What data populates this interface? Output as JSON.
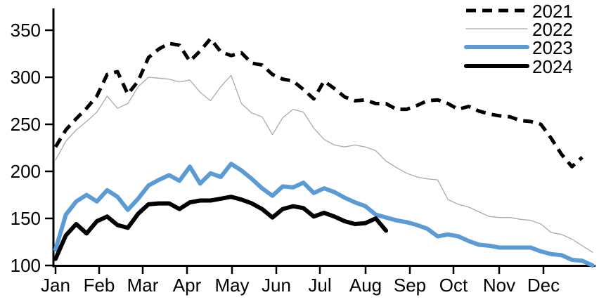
{
  "chart_data": {
    "type": "line",
    "title": "",
    "subtitle": "",
    "x_axis": {
      "unit": "weeks",
      "tick_labels": [
        "Jan",
        "Feb",
        "Mar",
        "Apr",
        "May",
        "Jun",
        "Jul",
        "Aug",
        "Sep",
        "Oct",
        "Nov",
        "Dec"
      ]
    },
    "y_axis": {
      "ticks": [
        100,
        150,
        200,
        250,
        300,
        350
      ],
      "min": 100,
      "max": 372,
      "grid": false
    },
    "legend": {
      "position": "top-right",
      "entries": [
        "2021",
        "2022",
        "2023",
        "2024"
      ]
    },
    "series": [
      {
        "name": "2021",
        "color": "#000000",
        "style": "dashed",
        "width": 5,
        "values": [
          226,
          244,
          256,
          267,
          280,
          303,
          306,
          282,
          296,
          321,
          330,
          336,
          334,
          317,
          328,
          341,
          327,
          323,
          326,
          315,
          313,
          303,
          298,
          296,
          287,
          277,
          296,
          288,
          279,
          275,
          276,
          272,
          272,
          266,
          266,
          270,
          275,
          276,
          272,
          266,
          269,
          264,
          261,
          259,
          258,
          254,
          253,
          250,
          235,
          218,
          205,
          215
        ]
      },
      {
        "name": "2022",
        "color": "#ABABAB",
        "style": "solid",
        "width": 1.3,
        "values": [
          212,
          232,
          244,
          253,
          263,
          280,
          267,
          272,
          290,
          300,
          299,
          298,
          295,
          297,
          284,
          275,
          290,
          302,
          272,
          262,
          258,
          239,
          257,
          266,
          263,
          246,
          234,
          228,
          226,
          228,
          226,
          222,
          211,
          204,
          198,
          194,
          192,
          191,
          170,
          165,
          162,
          157,
          152,
          151,
          151,
          149,
          148,
          144,
          135,
          133,
          128,
          121,
          114
        ]
      },
      {
        "name": "2023",
        "color": "#5B9BD5",
        "style": "solid",
        "width": 6,
        "values": [
          117,
          154,
          168,
          175,
          168,
          180,
          173,
          159,
          171,
          185,
          191,
          196,
          190,
          205,
          187,
          198,
          194,
          208,
          201,
          192,
          182,
          174,
          184,
          183,
          188,
          177,
          182,
          178,
          172,
          167,
          163,
          154,
          151,
          148,
          146,
          143,
          139,
          131,
          133,
          131,
          126,
          122,
          121,
          119,
          119,
          119,
          119,
          115,
          112,
          111,
          106,
          105,
          100
        ]
      },
      {
        "name": "2024",
        "color": "#000000",
        "style": "solid",
        "width": 6,
        "values": [
          107,
          132,
          144,
          134,
          147,
          152,
          143,
          140,
          155,
          165,
          166,
          166,
          160,
          167,
          169,
          169,
          171,
          173,
          170,
          166,
          160,
          151,
          160,
          163,
          161,
          152,
          156,
          152,
          147,
          144,
          145,
          150,
          137
        ]
      }
    ]
  }
}
